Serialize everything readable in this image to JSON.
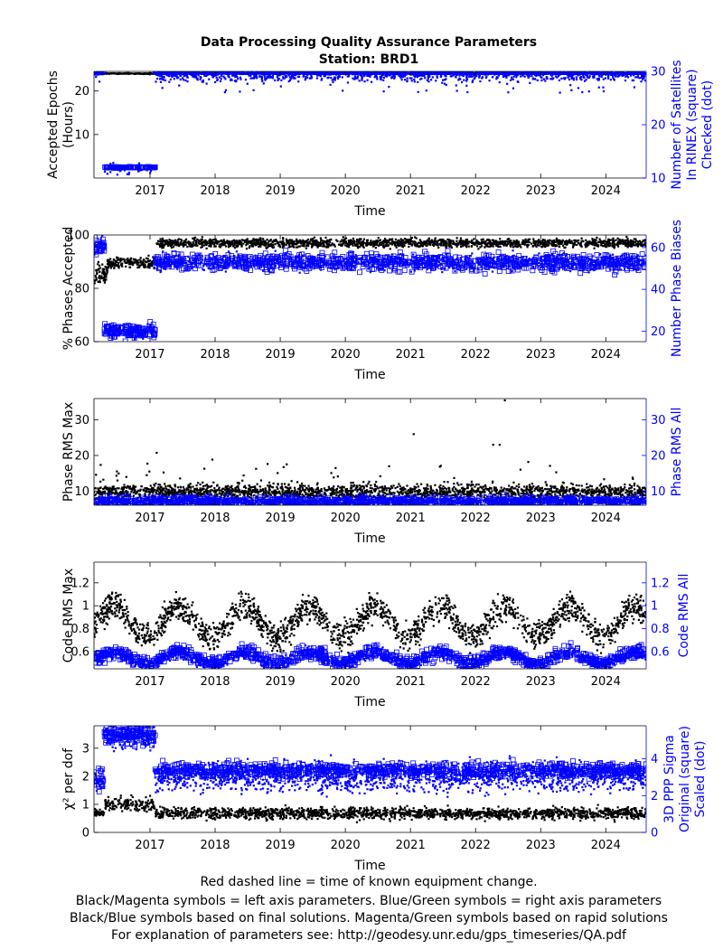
{
  "figure": {
    "title": "Data Processing Quality Assurance Parameters",
    "subtitle": "Station: BRD1",
    "footer_lines": [
      "Red dashed line = time of known equipment change.",
      "Black/Magenta symbols = left axis parameters. Blue/Green symbols = right axis parameters",
      "Black/Blue symbols based on final solutions.  Magenta/Green symbols based on rapid solutions",
      "For explanation of parameters see: http://geodesy.unr.edu/gps_timeseries/QA.pdf"
    ],
    "colors": {
      "left": "#000000",
      "right": "#0000ff",
      "axis": "#000000"
    }
  },
  "chart_data": [
    {
      "type": "scatter",
      "xlabel": "Time",
      "x_ticks": [
        "2017",
        "2018",
        "2019",
        "2020",
        "2021",
        "2022",
        "2023",
        "2024"
      ],
      "xlim": [
        2016.14,
        2024.62
      ],
      "ylabel_left": [
        "Accepted Epochs",
        "(Hours)"
      ],
      "ylim_left": [
        0,
        24.5
      ],
      "yticks_left": [
        {
          "v": 10,
          "label": "10"
        },
        {
          "v": 20,
          "label": "20"
        }
      ],
      "ylabel_right": [
        "Number of Satellites",
        "In RINEX (square)",
        "Checked (dot)"
      ],
      "ylim_right": [
        10,
        30
      ],
      "yticks_right": [
        {
          "v": 10,
          "label": "10"
        },
        {
          "v": 20,
          "label": "20"
        },
        {
          "v": 30,
          "label": "30"
        }
      ],
      "series": [
        {
          "side": "left",
          "marker": "dot",
          "color": "#000000",
          "segments": [
            {
              "x0": 2016.14,
              "x1": 2016.3,
              "mean": 24,
              "noise": 0.1,
              "n": 30
            },
            {
              "x0": 2016.3,
              "x1": 2017.08,
              "mean": 24,
              "noise": 0.05,
              "n": 110
            },
            {
              "x0": 2017.08,
              "x1": 2024.62,
              "mean": 24,
              "noise": 0.05,
              "n": 1300
            }
          ]
        },
        {
          "side": "right",
          "marker": "square",
          "color": "#0000ff",
          "segments": [
            {
              "x0": 2016.14,
              "x1": 2016.3,
              "mean": 30,
              "noise": 0.2,
              "n": 20
            },
            {
              "x0": 2016.3,
              "x1": 2017.08,
              "mean": 12,
              "noise": 0.05,
              "n": 120
            },
            {
              "x0": 2017.08,
              "x1": 2024.62,
              "mean": 30,
              "noise": 0.1,
              "n": 700
            }
          ]
        },
        {
          "side": "right",
          "marker": "dot",
          "color": "#0000ff",
          "segments": [
            {
              "x0": 2016.14,
              "x1": 2016.3,
              "mean": 30,
              "noise": 1,
              "n": 12
            },
            {
              "x0": 2016.3,
              "x1": 2017.08,
              "mean": 11.5,
              "noise": 0.6,
              "n": 30
            },
            {
              "x0": 2017.08,
              "x1": 2024.62,
              "mean": 29.5,
              "noise": 0.7,
              "n": 1200,
              "low": 26
            }
          ]
        }
      ]
    },
    {
      "type": "scatter",
      "xlabel": "Time",
      "x_ticks": [
        "2017",
        "2018",
        "2019",
        "2020",
        "2021",
        "2022",
        "2023",
        "2024"
      ],
      "xlim": [
        2016.14,
        2024.62
      ],
      "ylabel_left": [
        "% Phases Accepted"
      ],
      "ylim_left": [
        60,
        100
      ],
      "yticks_left": [
        {
          "v": 60,
          "label": "60"
        },
        {
          "v": 80,
          "label": "80"
        },
        {
          "v": 100,
          "label": "100"
        }
      ],
      "ylabel_right": [
        "Number Phase Biases"
      ],
      "ylim_right": [
        15,
        66
      ],
      "yticks_right": [
        {
          "v": 20,
          "label": "20"
        },
        {
          "v": 40,
          "label": "40"
        },
        {
          "v": 60,
          "label": "60"
        }
      ],
      "series": [
        {
          "side": "left",
          "marker": "dot",
          "color": "#000000",
          "segments": [
            {
              "x0": 2016.14,
              "x1": 2016.35,
              "mean": 86,
              "noise": 2,
              "n": 60
            },
            {
              "x0": 2016.35,
              "x1": 2017.08,
              "mean": 89.5,
              "noise": 1,
              "n": 180
            },
            {
              "x0": 2017.08,
              "x1": 2024.62,
              "mean": 97,
              "noise": 0.8,
              "n": 1700
            }
          ]
        },
        {
          "side": "right",
          "marker": "square",
          "color": "#0000ff",
          "segments": [
            {
              "x0": 2016.14,
              "x1": 2016.3,
              "mean": 60,
              "noise": 2,
              "n": 30
            },
            {
              "x0": 2016.3,
              "x1": 2017.08,
              "mean": 20,
              "noise": 1.5,
              "n": 140
            },
            {
              "x0": 2017.08,
              "x1": 2024.62,
              "mean": 53,
              "noise": 2,
              "n": 900
            }
          ]
        },
        {
          "side": "right",
          "marker": "dot",
          "color": "#0000ff",
          "segments": [
            {
              "x0": 2016.14,
              "x1": 2016.3,
              "mean": 60,
              "noise": 2,
              "n": 20
            },
            {
              "x0": 2016.3,
              "x1": 2017.08,
              "mean": 20,
              "noise": 1.5,
              "n": 60
            },
            {
              "x0": 2017.08,
              "x1": 2024.62,
              "mean": 53,
              "noise": 2,
              "n": 700
            }
          ]
        }
      ]
    },
    {
      "type": "scatter",
      "xlabel": "Time",
      "x_ticks": [
        "2017",
        "2018",
        "2019",
        "2020",
        "2021",
        "2022",
        "2023",
        "2024"
      ],
      "xlim": [
        2016.14,
        2024.62
      ],
      "ylabel_left": [
        "Phase RMS Max"
      ],
      "ylim_left": [
        6,
        36
      ],
      "yticks_left": [
        {
          "v": 10,
          "label": "10"
        },
        {
          "v": 20,
          "label": "20"
        },
        {
          "v": 30,
          "label": "30"
        }
      ],
      "ylabel_right": [
        "Phase RMS All"
      ],
      "ylim_right": [
        6,
        36
      ],
      "yticks_right": [
        {
          "v": 10,
          "label": "10"
        },
        {
          "v": 20,
          "label": "20"
        },
        {
          "v": 30,
          "label": "30"
        }
      ],
      "series": [
        {
          "side": "left",
          "marker": "dot",
          "color": "#000000",
          "segments": [
            {
              "x0": 2016.14,
              "x1": 2024.62,
              "mean": 9.8,
              "noise": 1,
              "n": 1900,
              "outliers": 60,
              "outlier_max": 22
            }
          ]
        },
        {
          "side": "right",
          "marker": "square",
          "color": "#0000ff",
          "segments": [
            {
              "x0": 2016.14,
              "x1": 2024.62,
              "mean": 7.2,
              "noise": 0.6,
              "n": 900
            }
          ]
        },
        {
          "side": "right",
          "marker": "dot",
          "color": "#0000ff",
          "segments": [
            {
              "x0": 2016.14,
              "x1": 2024.62,
              "mean": 7,
              "noise": 0.5,
              "n": 900
            }
          ]
        }
      ],
      "outliers": [
        {
          "x": 2021.05,
          "y": 26
        },
        {
          "x": 2022.27,
          "y": 23
        },
        {
          "x": 2022.37,
          "y": 23
        },
        {
          "x": 2022.45,
          "y": 35.5
        },
        {
          "x": 2019.1,
          "y": 17.5
        }
      ]
    },
    {
      "type": "scatter",
      "xlabel": "Time",
      "x_ticks": [
        "2017",
        "2018",
        "2019",
        "2020",
        "2021",
        "2022",
        "2023",
        "2024"
      ],
      "xlim": [
        2016.14,
        2024.62
      ],
      "ylabel_left": [
        "Code RMS Max"
      ],
      "ylim_left": [
        0.45,
        1.38
      ],
      "yticks_left": [
        {
          "v": 0.6,
          "label": "0.6"
        },
        {
          "v": 0.8,
          "label": "0.8"
        },
        {
          "v": 1.0,
          "label": "1"
        },
        {
          "v": 1.2,
          "label": "1.2"
        }
      ],
      "ylabel_right": [
        "Code RMS All"
      ],
      "ylim_right": [
        0.45,
        1.38
      ],
      "yticks_right": [
        {
          "v": 0.6,
          "label": "0.6"
        },
        {
          "v": 0.8,
          "label": "0.8"
        },
        {
          "v": 1.0,
          "label": "1"
        },
        {
          "v": 1.2,
          "label": "1.2"
        }
      ],
      "series": [
        {
          "side": "left",
          "marker": "dot",
          "color": "#000000",
          "seasonal": true,
          "base": 0.86,
          "amplitude": 0.13,
          "phase": 0.45,
          "noise": 0.06,
          "n": 2000,
          "x0": 2016.14,
          "x1": 2024.62
        },
        {
          "side": "right",
          "marker": "square",
          "color": "#0000ff",
          "seasonal": true,
          "base": 0.55,
          "amplitude": 0.05,
          "phase": 0.45,
          "noise": 0.03,
          "n": 1100,
          "x0": 2016.14,
          "x1": 2024.62
        },
        {
          "side": "right",
          "marker": "dot",
          "color": "#0000ff",
          "seasonal": true,
          "base": 0.54,
          "amplitude": 0.05,
          "phase": 0.45,
          "noise": 0.025,
          "n": 900,
          "x0": 2016.14,
          "x1": 2024.62
        }
      ]
    },
    {
      "type": "scatter",
      "xlabel": "Time",
      "x_ticks": [
        "2017",
        "2018",
        "2019",
        "2020",
        "2021",
        "2022",
        "2023",
        "2024"
      ],
      "xlim": [
        2016.14,
        2024.62
      ],
      "ylabel_left": [
        "χ² per dof"
      ],
      "ylim_left": [
        0,
        3.8
      ],
      "yticks_left": [
        {
          "v": 0,
          "label": "0"
        },
        {
          "v": 1,
          "label": "1"
        },
        {
          "v": 2,
          "label": "2"
        },
        {
          "v": 3,
          "label": "3"
        }
      ],
      "ylabel_right": [
        "3D PPP Sigma",
        "Original (square)",
        "Scaled (dot)"
      ],
      "ylim_right": [
        0,
        5.8
      ],
      "yticks_right": [
        {
          "v": 0,
          "label": "0"
        },
        {
          "v": 2,
          "label": "2"
        },
        {
          "v": 4,
          "label": "4"
        }
      ],
      "series": [
        {
          "side": "left",
          "marker": "dot",
          "color": "#000000",
          "segments": [
            {
              "x0": 2016.14,
              "x1": 2016.3,
              "mean": 0.7,
              "noise": 0.05,
              "n": 40
            },
            {
              "x0": 2016.3,
              "x1": 2017.08,
              "mean": 1.0,
              "noise": 0.12,
              "n": 160
            },
            {
              "x0": 2017.08,
              "x1": 2024.62,
              "mean": 0.68,
              "noise": 0.1,
              "n": 1700
            }
          ]
        },
        {
          "side": "right",
          "marker": "square",
          "color": "#0000ff",
          "segments": [
            {
              "x0": 2016.14,
              "x1": 2016.3,
              "mean": 2.9,
              "noise": 0.3,
              "n": 20
            },
            {
              "x0": 2016.3,
              "x1": 2017.08,
              "mean": 5.3,
              "noise": 0.25,
              "n": 130
            },
            {
              "x0": 2017.08,
              "x1": 2024.62,
              "mean": 3.4,
              "noise": 0.2,
              "n": 900
            }
          ]
        },
        {
          "side": "right",
          "marker": "dot",
          "color": "#0000ff",
          "segments": [
            {
              "x0": 2016.14,
              "x1": 2016.3,
              "mean": 2.8,
              "noise": 0.3,
              "n": 30
            },
            {
              "x0": 2016.3,
              "x1": 2017.08,
              "mean": 5.2,
              "noise": 0.3,
              "n": 160
            },
            {
              "x0": 2017.08,
              "x1": 2024.62,
              "mean": 3.0,
              "noise": 0.4,
              "n": 1500
            }
          ]
        }
      ]
    }
  ]
}
